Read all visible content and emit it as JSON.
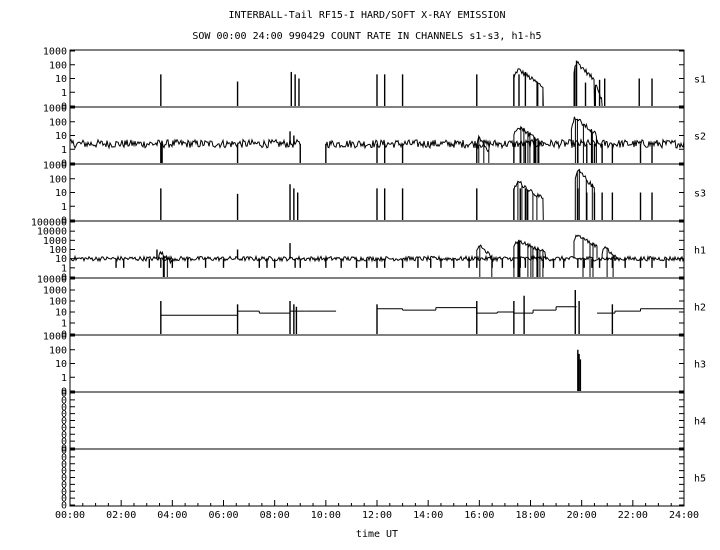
{
  "chart_data": {
    "type": "line",
    "title": "INTERBALL-Tail RF15-I HARD/SOFT X-RAY EMISSION",
    "subtitle": "SOW 00:00 24:00 990429  COUNT RATE IN CHANNELS s1-s3, h1-h5",
    "xlabel": "time UT",
    "x_tick_labels": [
      "00:00",
      "02:00",
      "04:00",
      "06:00",
      "08:00",
      "10:00",
      "12:00",
      "14:00",
      "16:00",
      "18:00",
      "20:00",
      "22:00",
      "24:00"
    ],
    "xlim_hours": [
      0,
      24
    ],
    "grid": false,
    "y_scale": "log",
    "panels": [
      {
        "channel": "s1",
        "y_tick_labels": [
          "0",
          "1",
          "10",
          "100",
          "1000"
        ],
        "baseline": 0,
        "noise": 0,
        "spikes": [
          [
            3.55,
            20
          ],
          [
            6.55,
            6
          ],
          [
            8.65,
            30
          ],
          [
            8.8,
            20
          ],
          [
            8.95,
            10
          ],
          [
            12.0,
            20
          ],
          [
            12.3,
            20
          ],
          [
            13.0,
            20
          ],
          [
            15.9,
            20
          ],
          [
            17.35,
            20
          ],
          [
            17.55,
            20
          ],
          [
            17.8,
            30
          ],
          [
            19.8,
            200
          ],
          [
            20.15,
            5
          ],
          [
            20.7,
            8
          ],
          [
            20.9,
            10
          ],
          [
            22.25,
            10
          ],
          [
            22.75,
            10
          ]
        ],
        "features": [
          [
            17.35,
            18.5,
            45,
            6
          ],
          [
            19.7,
            20.5,
            150,
            5
          ],
          [
            20.5,
            20.8,
            5,
            4
          ]
        ]
      },
      {
        "channel": "s2",
        "y_tick_labels": [
          "0",
          "1",
          "10",
          "100",
          "1000"
        ],
        "baseline": 2.5,
        "noise": 0.3,
        "spikes": [
          [
            3.55,
            0
          ],
          [
            3.6,
            0
          ],
          [
            6.55,
            0
          ],
          [
            8.6,
            20
          ],
          [
            8.75,
            10
          ],
          [
            9.0,
            0
          ],
          [
            10.0,
            0
          ],
          [
            12.0,
            0
          ],
          [
            12.3,
            0
          ],
          [
            13.0,
            0
          ],
          [
            15.9,
            0
          ],
          [
            17.35,
            0
          ],
          [
            17.6,
            0
          ],
          [
            17.8,
            0
          ],
          [
            19.85,
            0
          ],
          [
            20.2,
            0
          ],
          [
            20.5,
            0
          ],
          [
            20.8,
            0
          ],
          [
            21.2,
            0
          ],
          [
            22.3,
            0
          ],
          [
            22.75,
            0
          ]
        ],
        "gaps": [
          [
            9.0,
            10.0
          ]
        ],
        "features": [
          [
            15.9,
            16.4,
            10,
            5
          ],
          [
            17.35,
            18.5,
            50,
            5
          ],
          [
            19.6,
            20.6,
            200,
            4
          ]
        ]
      },
      {
        "channel": "s3",
        "y_tick_labels": [
          "0",
          "1",
          "10",
          "100",
          "1000"
        ],
        "baseline": 0,
        "noise": 0,
        "spikes": [
          [
            3.55,
            20
          ],
          [
            6.55,
            8
          ],
          [
            8.6,
            40
          ],
          [
            8.75,
            20
          ],
          [
            8.9,
            10
          ],
          [
            12.0,
            20
          ],
          [
            12.3,
            20
          ],
          [
            13.0,
            20
          ],
          [
            15.9,
            20
          ],
          [
            17.35,
            20
          ],
          [
            17.6,
            20
          ],
          [
            17.8,
            20
          ],
          [
            19.85,
            20
          ],
          [
            20.2,
            10
          ],
          [
            20.5,
            10
          ],
          [
            20.8,
            10
          ],
          [
            21.2,
            10
          ],
          [
            22.3,
            10
          ],
          [
            22.75,
            10
          ]
        ],
        "features": [
          [
            17.35,
            18.5,
            60,
            5
          ],
          [
            19.75,
            20.5,
            400,
            4
          ]
        ]
      },
      {
        "channel": "h1",
        "y_tick_labels": [
          "0",
          "1",
          "10",
          "100",
          "1000",
          "10000",
          "100000"
        ],
        "baseline": 10,
        "noise": 0.25,
        "spikes": [
          [
            1.8,
            1
          ],
          [
            2.1,
            1
          ],
          [
            3.1,
            1
          ],
          [
            3.4,
            100
          ],
          [
            3.55,
            1
          ],
          [
            4.0,
            1
          ],
          [
            4.6,
            1
          ],
          [
            5.3,
            1
          ],
          [
            6.0,
            1
          ],
          [
            6.55,
            100
          ],
          [
            7.4,
            1
          ],
          [
            7.7,
            1
          ],
          [
            8.0,
            1
          ],
          [
            8.6,
            500
          ],
          [
            8.8,
            1
          ],
          [
            9.0,
            1
          ],
          [
            10.0,
            1
          ],
          [
            10.6,
            1
          ],
          [
            11.2,
            1
          ],
          [
            11.6,
            1
          ],
          [
            12.0,
            1
          ],
          [
            12.3,
            1
          ],
          [
            13.0,
            1
          ],
          [
            13.6,
            1
          ],
          [
            14.1,
            1
          ],
          [
            14.5,
            1
          ],
          [
            15.0,
            1
          ],
          [
            15.6,
            1
          ],
          [
            15.9,
            1
          ],
          [
            16.5,
            1
          ],
          [
            16.9,
            1
          ],
          [
            17.35,
            1
          ],
          [
            17.6,
            1
          ],
          [
            17.8,
            1
          ],
          [
            18.5,
            1
          ],
          [
            18.9,
            1
          ],
          [
            19.3,
            1
          ],
          [
            19.85,
            1
          ],
          [
            20.1,
            1
          ],
          [
            20.4,
            1
          ],
          [
            20.7,
            1
          ],
          [
            21.2,
            1
          ],
          [
            21.7,
            1
          ],
          [
            22.3,
            1
          ],
          [
            22.75,
            1
          ],
          [
            23.3,
            1
          ]
        ],
        "features": [
          [
            3.45,
            4.0,
            60,
            4
          ],
          [
            15.9,
            16.5,
            300,
            5
          ],
          [
            17.35,
            18.6,
            900,
            5
          ],
          [
            19.7,
            20.6,
            4000,
            4
          ],
          [
            20.8,
            21.4,
            200,
            5
          ]
        ]
      },
      {
        "channel": "h2",
        "y_tick_labels": [
          "0",
          "1",
          "10",
          "100",
          "1000",
          "10000"
        ],
        "baseline": 0,
        "noise": 0,
        "steps": [
          [
            3.55,
            6.55,
            5
          ],
          [
            6.55,
            7.4,
            12
          ],
          [
            7.4,
            8.6,
            8
          ],
          [
            8.6,
            9.2,
            12
          ],
          [
            9.2,
            10.4,
            12
          ],
          [
            12.0,
            13.0,
            20
          ],
          [
            13.0,
            14.3,
            15
          ],
          [
            14.3,
            15.9,
            25
          ],
          [
            15.9,
            16.7,
            8
          ],
          [
            16.7,
            17.35,
            10
          ],
          [
            17.35,
            18.1,
            8
          ],
          [
            18.1,
            19.0,
            15
          ],
          [
            19.0,
            19.8,
            30
          ],
          [
            20.6,
            21.3,
            8
          ],
          [
            21.3,
            22.3,
            12
          ],
          [
            22.3,
            23.0,
            20
          ],
          [
            23.0,
            24.0,
            20
          ]
        ],
        "spikes": [
          [
            3.55,
            100
          ],
          [
            3.6,
            0
          ],
          [
            6.55,
            50
          ],
          [
            8.6,
            100
          ],
          [
            8.75,
            50
          ],
          [
            8.85,
            30
          ],
          [
            10.4,
            0
          ],
          [
            12.0,
            50
          ],
          [
            12.3,
            0
          ],
          [
            15.9,
            100
          ],
          [
            17.35,
            100
          ],
          [
            17.55,
            0
          ],
          [
            17.75,
            300
          ],
          [
            17.9,
            0
          ],
          [
            19.75,
            1000
          ],
          [
            19.9,
            100
          ],
          [
            20.0,
            0
          ],
          [
            20.2,
            0
          ],
          [
            20.5,
            0
          ],
          [
            20.8,
            0
          ],
          [
            21.2,
            50
          ],
          [
            22.3,
            0
          ],
          [
            22.75,
            0
          ]
        ]
      },
      {
        "channel": "h3",
        "y_tick_labels": [
          "0",
          "1",
          "10",
          "100",
          "1000"
        ],
        "baseline": 0,
        "noise": 0,
        "spikes": [
          [
            19.85,
            100
          ],
          [
            19.9,
            50
          ],
          [
            19.95,
            20
          ]
        ]
      },
      {
        "channel": "h4",
        "y_tick_labels": [
          "0",
          "0",
          "0",
          "0",
          "0",
          "0",
          "0",
          "0",
          "0"
        ],
        "baseline": 0,
        "noise": 0,
        "spikes": []
      },
      {
        "channel": "h5",
        "y_tick_labels": [
          "0",
          "0",
          "0",
          "0",
          "0",
          "0",
          "0",
          "0",
          "0"
        ],
        "baseline": 0,
        "noise": 0,
        "spikes": []
      }
    ]
  }
}
